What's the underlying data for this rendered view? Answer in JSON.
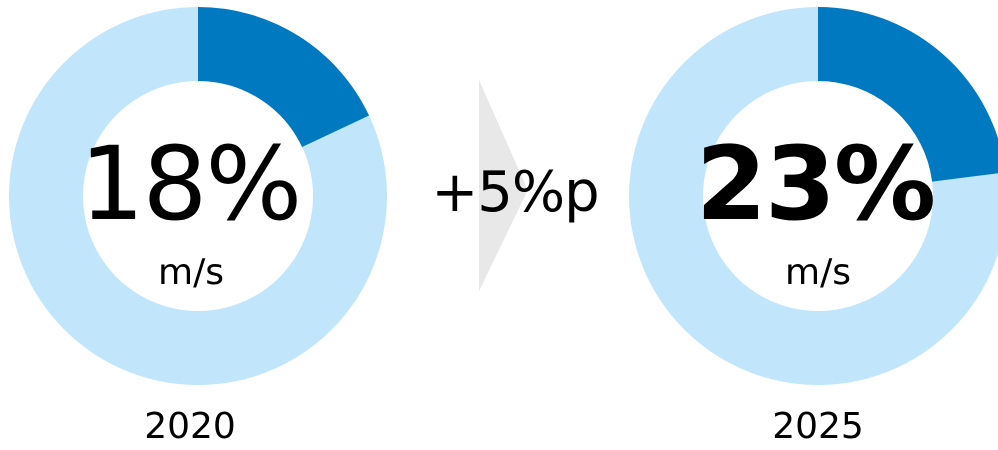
{
  "chart_data": {
    "type": "pie",
    "charts": [
      {
        "year": "2020",
        "value": 18,
        "value_label": "18%",
        "unit": "m/s"
      },
      {
        "year": "2025",
        "value": 23,
        "value_label": "23%",
        "unit": "m/s"
      }
    ],
    "change_label": "+5%p",
    "colors": {
      "filled": "#0079c1",
      "remaining": "#c1e5fb",
      "arrow_dark": "#c6c6c6",
      "arrow_light": "#e8e8e8"
    }
  }
}
